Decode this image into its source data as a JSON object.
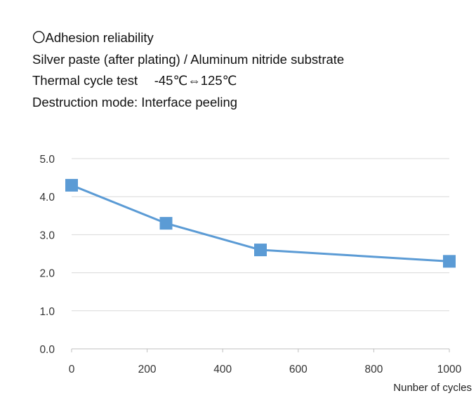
{
  "header": {
    "lines": [
      "〇Adhesion reliability",
      "Silver paste (after plating) / Aluminum nitride substrate",
      "Thermal cycle test　 -45℃⇔125℃",
      "Destruction mode: Interface peeling"
    ]
  },
  "chart_data": {
    "type": "line",
    "title": "",
    "xlabel": "Nunber of cycles",
    "ylabel": "",
    "xlim": [
      0,
      1000
    ],
    "ylim": [
      0,
      5
    ],
    "xticks": [
      "0",
      "200",
      "400",
      "600",
      "800",
      "1000"
    ],
    "yticks": [
      "0.0",
      "1.0",
      "2.0",
      "3.0",
      "4.0",
      "5.0"
    ],
    "grid": "horizontal",
    "legend": "none",
    "series": [
      {
        "x": [
          0,
          250,
          500,
          1000
        ],
        "y": [
          4.3,
          3.3,
          2.6,
          2.3
        ],
        "color": "#5b9bd5",
        "marker": "square"
      }
    ]
  }
}
